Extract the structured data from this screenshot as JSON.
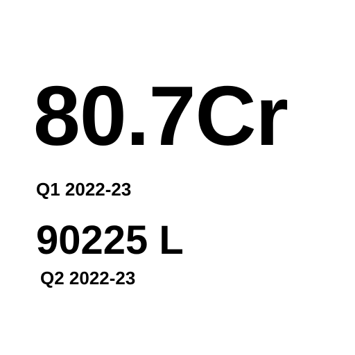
{
  "stats": [
    {
      "value": "80.7Cr",
      "period": "Q1 2022-23"
    },
    {
      "value": "90225 L",
      "period": "Q2 2022-23"
    }
  ],
  "colors": {
    "text": "#000000",
    "background": "#ffffff"
  }
}
